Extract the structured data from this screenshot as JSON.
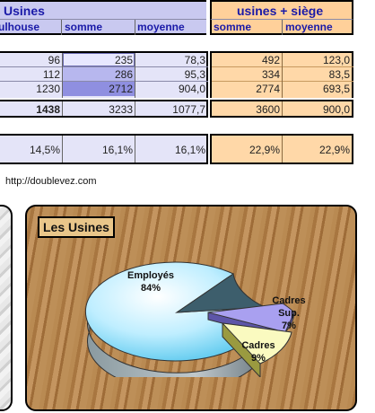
{
  "header": {
    "usines_title": "Usines",
    "siege_title": "usines + siège",
    "col_mulhouse": "Mulhouse",
    "col_somme": "somme",
    "col_moyenne": "moyenne",
    "col_somme2": "somme",
    "col_moyenne2": "moyenne"
  },
  "rows": [
    {
      "mulhouse": "96",
      "somme": "235",
      "moyenne": "78,3",
      "somme2": "492",
      "moyenne2": "123,0"
    },
    {
      "mulhouse": "112",
      "somme": "286",
      "moyenne": "95,3",
      "somme2": "334",
      "moyenne2": "83,5"
    },
    {
      "mulhouse": "1230",
      "somme": "2712",
      "moyenne": "904,0",
      "somme2": "2774",
      "moyenne2": "693,5"
    }
  ],
  "totals": {
    "mulhouse": "1438",
    "somme": "3233",
    "moyenne": "1077,7",
    "somme2": "3600",
    "moyenne2": "900,0"
  },
  "percents": {
    "mulhouse": "14,5%",
    "somme": "16,1%",
    "moyenne": "16,1%",
    "somme2": "22,9%",
    "moyenne2": "22,9%"
  },
  "url_text": "http://doublevez.com",
  "colors": {
    "blue_header": "#c9c9f0",
    "orange_header": "#ffd09a",
    "row_blue": "#e4e4f8",
    "row_orange": "#ffd8a8",
    "dark_blue_cell": "#8f8fe0",
    "wood": "#b5824a"
  },
  "chart_data": {
    "type": "pie",
    "title": "Les Usines",
    "slices": [
      {
        "label": "Employés",
        "percent": "84%",
        "value": 84,
        "color": "#bfeeff"
      },
      {
        "label": "Cadres Sup.",
        "percent": "7%",
        "value": 7,
        "color": "#a9a0f0"
      },
      {
        "label": "Cadres",
        "percent": "9%",
        "value": 9,
        "color": "#fafac0"
      }
    ]
  }
}
